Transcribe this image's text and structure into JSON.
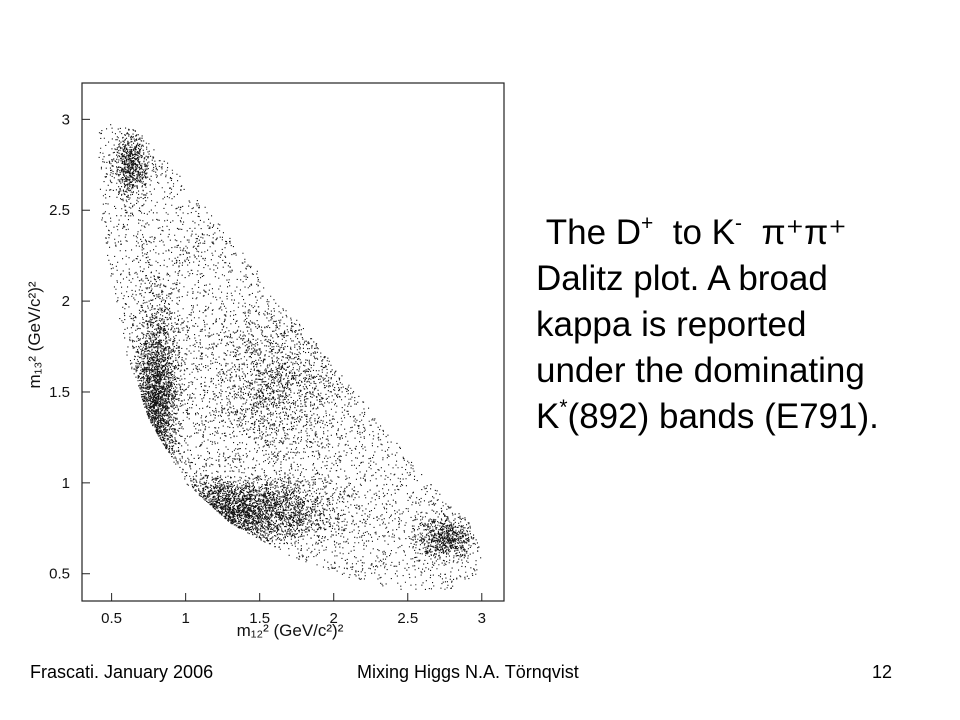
{
  "caption": {
    "line1_the": "The D",
    "line1_sup_plus": "+",
    "line1_to": "to K",
    "line1_sup_minus": "-",
    "line1_pions": "π⁺π⁺",
    "line2": "Dalitz plot. A broad",
    "line3": "kappa is reported",
    "line4": "under the dominating",
    "line5_k": "K",
    "line5_star": "*",
    "line5_rest": "(892) bands (E791)."
  },
  "footer": {
    "left": "Frascati.  January 2006",
    "center": "Mixing Higgs       N.A. Törnqvist",
    "page": "12"
  },
  "chart_data": {
    "type": "scatter",
    "xlabel": "m₁₂² (GeV/c²)²",
    "ylabel": "m₁₃² (GeV/c²)²",
    "xlim": [
      0.3,
      3.15
    ],
    "ylim": [
      0.35,
      3.2
    ],
    "xticks": [
      "0.5",
      "1",
      "1.5",
      "2",
      "2.5",
      "3"
    ],
    "yticks": [
      "0.5",
      "1",
      "1.5",
      "2",
      "2.5",
      "3"
    ],
    "boundary": [
      [
        0.4,
        2.95
      ],
      [
        0.52,
        3.0
      ],
      [
        0.7,
        2.92
      ],
      [
        0.95,
        2.7
      ],
      [
        1.25,
        2.4
      ],
      [
        1.6,
        2.05
      ],
      [
        1.95,
        1.7
      ],
      [
        2.3,
        1.35
      ],
      [
        2.65,
        1.0
      ],
      [
        2.9,
        0.8
      ],
      [
        3.0,
        0.62
      ],
      [
        2.95,
        0.48
      ],
      [
        2.8,
        0.42
      ],
      [
        2.5,
        0.4
      ],
      [
        2.1,
        0.48
      ],
      [
        1.7,
        0.6
      ],
      [
        1.3,
        0.78
      ],
      [
        1.0,
        1.0
      ],
      [
        0.75,
        1.35
      ],
      [
        0.6,
        1.7
      ],
      [
        0.5,
        2.1
      ],
      [
        0.42,
        2.5
      ]
    ],
    "dense_regions": [
      {
        "name": "K*(892) band in m13",
        "center": [
          1.3,
          0.85
        ],
        "spread": [
          0.55,
          0.15
        ]
      },
      {
        "name": "K*(892) band in m12",
        "center": [
          0.8,
          1.45
        ],
        "spread": [
          0.12,
          0.45
        ]
      },
      {
        "name": "upper-left corner",
        "center": [
          0.62,
          2.75
        ],
        "spread": [
          0.1,
          0.15
        ]
      },
      {
        "name": "lower-right corner",
        "center": [
          2.75,
          0.7
        ],
        "spread": [
          0.17,
          0.1
        ]
      },
      {
        "name": "central band",
        "center": [
          1.6,
          1.55
        ],
        "spread": [
          0.4,
          0.35
        ]
      }
    ]
  }
}
